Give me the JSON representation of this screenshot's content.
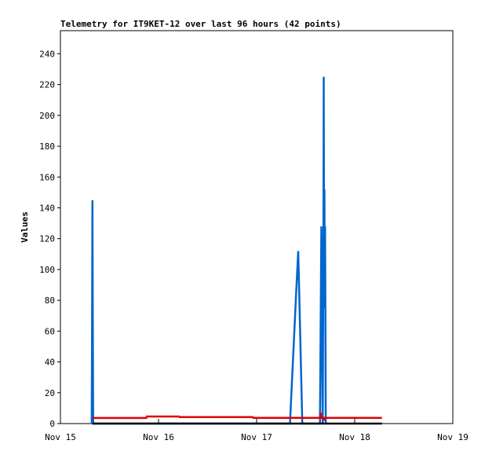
{
  "chart_data": {
    "type": "line",
    "title": "Telemetry for IT9KET-12 over last 96 hours (42 points)",
    "xlabel": "",
    "ylabel": "Values",
    "xlim": [
      "2023-11-15T00:00",
      "2023-11-19T00:00"
    ],
    "ylim": [
      0,
      255
    ],
    "y_ticks": [
      0,
      20,
      40,
      60,
      80,
      100,
      120,
      140,
      160,
      180,
      200,
      220,
      240
    ],
    "x_ticks": [
      {
        "at": "2023-11-15T00:00",
        "label": "Nov 15"
      },
      {
        "at": "2023-11-16T00:00",
        "label": "Nov 16"
      },
      {
        "at": "2023-11-17T00:00",
        "label": "Nov 17"
      },
      {
        "at": "2023-11-18T00:00",
        "label": "Nov 18"
      },
      {
        "at": "2023-11-19T00:00",
        "label": "Nov 19"
      }
    ],
    "grid": false,
    "legend": "none",
    "series": [
      {
        "color": "#0066cc",
        "points": [
          [
            "2023-11-15T07:40",
            0
          ],
          [
            "2023-11-15T07:45",
            72
          ],
          [
            "2023-11-15T07:50",
            145
          ],
          [
            "2023-11-15T07:55",
            72
          ],
          [
            "2023-11-15T08:00",
            0
          ],
          [
            "2023-11-17T08:10",
            0
          ],
          [
            "2023-11-17T08:40",
            28
          ],
          [
            "2023-11-17T09:10",
            56
          ],
          [
            "2023-11-17T09:40",
            84
          ],
          [
            "2023-11-17T10:10",
            112
          ],
          [
            "2023-11-17T10:40",
            56
          ],
          [
            "2023-11-17T11:10",
            0
          ],
          [
            "2023-11-17T15:30",
            0
          ],
          [
            "2023-11-17T15:40",
            64
          ],
          [
            "2023-11-17T15:50",
            128
          ],
          [
            "2023-11-17T16:00",
            64
          ],
          [
            "2023-11-17T16:10",
            0
          ],
          [
            "2023-11-17T16:20",
            112
          ],
          [
            "2023-11-17T16:25",
            225
          ],
          [
            "2023-11-17T16:30",
            112
          ],
          [
            "2023-11-17T16:35",
            152
          ],
          [
            "2023-11-17T16:40",
            75
          ],
          [
            "2023-11-17T16:45",
            128
          ],
          [
            "2023-11-17T16:50",
            64
          ],
          [
            "2023-11-17T16:55",
            0
          ]
        ]
      },
      {
        "color": "#e00000",
        "points": [
          [
            "2023-11-15T07:50",
            3.6
          ],
          [
            "2023-11-15T21:00",
            3.6
          ],
          [
            "2023-11-15T21:10",
            4.6
          ],
          [
            "2023-11-16T05:00",
            4.6
          ],
          [
            "2023-11-16T05:10",
            4.2
          ],
          [
            "2023-11-16T23:00",
            4.2
          ],
          [
            "2023-11-16T23:10",
            3.7
          ],
          [
            "2023-11-17T15:30",
            3.7
          ],
          [
            "2023-11-17T15:40",
            7.0
          ],
          [
            "2023-11-17T15:50",
            3.7
          ],
          [
            "2023-11-17T16:20",
            3.7
          ],
          [
            "2023-11-17T16:30",
            2.0
          ],
          [
            "2023-11-17T16:40",
            3.7
          ],
          [
            "2023-11-18T06:40",
            3.7
          ]
        ]
      },
      {
        "color": "#000000",
        "points": [
          [
            "2023-11-15T07:50",
            0
          ],
          [
            "2023-11-18T06:40",
            0
          ]
        ]
      }
    ]
  }
}
